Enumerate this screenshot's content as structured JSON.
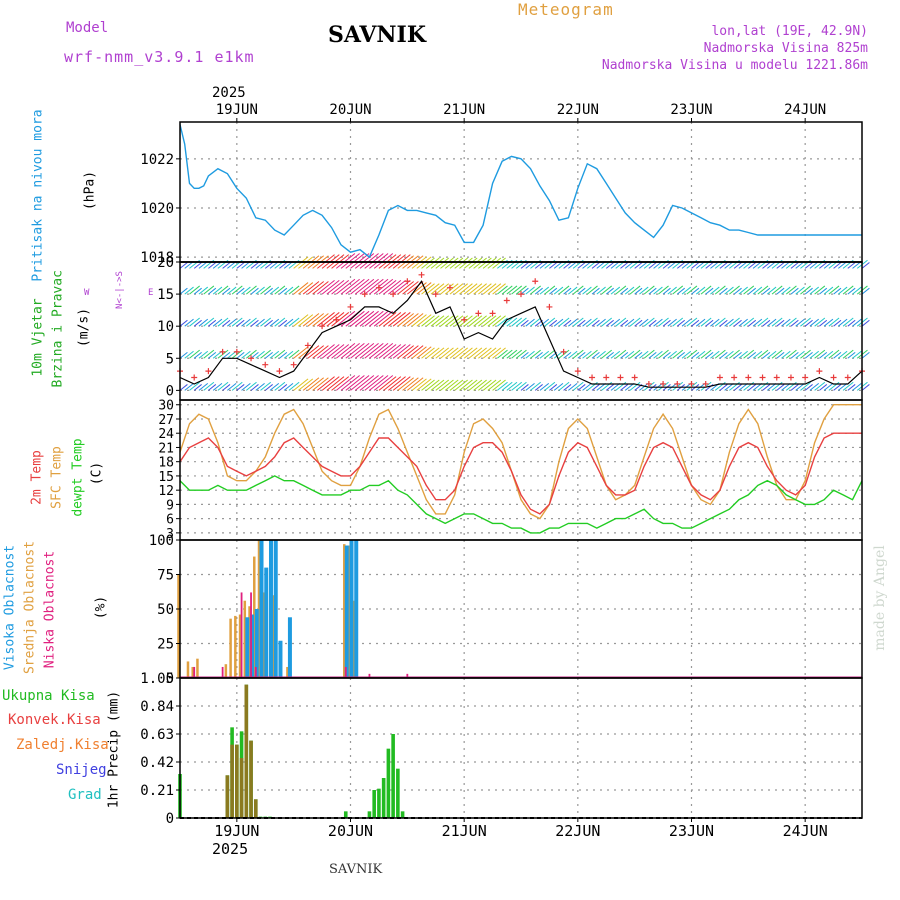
{
  "header": {
    "model_label": "Model",
    "model_name": "wrf-nmm_v3.9.1  e1km",
    "station": "SAVNIK",
    "subtitle": "Meteogram",
    "lonlat": "lon,lat (19E, 42.9N)",
    "elevation": "Nadmorska Visina 825m",
    "model_elevation": "Nadmorska Visina u modelu 1221.86m",
    "footer_station": "SAVNIK",
    "watermark": "made by Angel"
  },
  "colors": {
    "pressure": "#1e9be0",
    "wind_speed": "#000000",
    "wind_gust": "#e83a3a",
    "temp2m": "#e84040",
    "sfc_temp": "#e0a040",
    "dewpt": "#22cc22",
    "cloud_high": "#1e9be0",
    "cloud_mid": "#e0a040",
    "cloud_low": "#e0207f",
    "rain_total": "#22bb22",
    "rain_conv": "#e84040",
    "rain_frz": "#f08030",
    "snow": "#4040e0",
    "hail": "#20c0c0",
    "title_purple": "#b040d0",
    "orange": "#e0a040"
  },
  "time_axis": {
    "top_year": "2025",
    "bottom_year": "2025",
    "days": [
      "19JUN",
      "20JUN",
      "21JUN",
      "22JUN",
      "23JUN",
      "24JUN"
    ],
    "start_hour": 12,
    "end_hour": 156
  },
  "panels": {
    "pressure": {
      "label": "Pritisak na nivou mora",
      "unit": "(hPa)",
      "ticks": [
        "1018",
        "1020",
        "1022"
      ]
    },
    "wind": {
      "label1": "10m Vjetar",
      "label2": "Brzina i Pravac",
      "unit": "(m/s)",
      "ticks": [
        "0",
        "5",
        "10",
        "15",
        "20"
      ],
      "compass_ns": "N<-|->S",
      "compass_w": "W",
      "compass_e": "E"
    },
    "temp": {
      "label1": "2m Temp",
      "label2": "SFC Temp",
      "label3": "dewpt Temp",
      "unit": "(C)",
      "ticks": [
        "3",
        "6",
        "9",
        "12",
        "15",
        "18",
        "21",
        "24",
        "27",
        "30"
      ]
    },
    "cloud": {
      "label1": "Visoka Oblacnost",
      "label2": "Srednja Oblacnost",
      "label3": "Niska Oblacnost",
      "unit": "(%)",
      "ticks": [
        "0",
        "25",
        "50",
        "75",
        "100"
      ]
    },
    "precip": {
      "unit": "1hr Precip (mm)",
      "ticks": [
        "0",
        "0.21",
        "0.42",
        "0.63",
        "0.84",
        "1.05"
      ],
      "legend": [
        "Ukupna Kisa",
        "Konvek.Kisa",
        "Zaledj.Kisa",
        "Snijeg",
        "Grad"
      ]
    }
  },
  "chart_data": [
    {
      "type": "line",
      "title": "Pritisak na nivou mora",
      "ylabel": "(hPa)",
      "ylim": [
        1017.8,
        1023.5
      ],
      "x_hours": [
        12,
        13,
        14,
        15,
        16,
        17,
        18,
        20,
        22,
        24,
        26,
        28,
        30,
        32,
        34,
        36,
        38,
        40,
        42,
        44,
        46,
        48,
        50,
        52,
        54,
        56,
        58,
        60,
        62,
        64,
        66,
        68,
        70,
        72,
        74,
        76,
        78,
        80,
        82,
        84,
        86,
        88,
        90,
        92,
        94,
        96,
        98,
        100,
        102,
        104,
        106,
        108,
        110,
        112,
        114,
        116,
        118,
        120,
        122,
        124,
        126,
        128,
        130,
        132,
        134,
        136,
        138,
        140,
        142,
        144,
        146,
        148,
        150,
        152,
        154,
        156
      ],
      "values": [
        1023.4,
        1022.6,
        1021.0,
        1020.8,
        1020.8,
        1020.9,
        1021.3,
        1021.6,
        1021.4,
        1020.8,
        1020.4,
        1019.6,
        1019.5,
        1019.1,
        1018.9,
        1019.3,
        1019.7,
        1019.9,
        1019.7,
        1019.2,
        1018.5,
        1018.2,
        1018.3,
        1018.0,
        1018.9,
        1019.9,
        1020.1,
        1019.9,
        1019.9,
        1019.8,
        1019.7,
        1019.4,
        1019.3,
        1018.6,
        1018.6,
        1019.3,
        1021.0,
        1021.9,
        1022.1,
        1022.0,
        1021.6,
        1020.9,
        1020.3,
        1019.5,
        1019.6,
        1020.8,
        1021.8,
        1021.6,
        1021.0,
        1020.4,
        1019.8,
        1019.4,
        1019.1,
        1018.8,
        1019.3,
        1020.1,
        1020.0,
        1019.8,
        1019.6,
        1019.4,
        1019.3,
        1019.1,
        1019.1,
        1019.0,
        1018.9,
        1018.9,
        1018.9,
        1018.9,
        1018.9,
        1018.9,
        1018.9,
        1018.9,
        1018.9,
        1018.9,
        1018.9,
        1018.9
      ]
    },
    {
      "type": "line",
      "title": "10m Vjetar Brzina i Pravac",
      "ylabel": "(m/s)",
      "ylim": [
        -1.5,
        20
      ],
      "x_hours": [
        12,
        15,
        18,
        21,
        24,
        27,
        30,
        33,
        36,
        39,
        42,
        45,
        48,
        51,
        54,
        57,
        60,
        63,
        66,
        69,
        72,
        75,
        78,
        81,
        84,
        87,
        90,
        93,
        96,
        99,
        102,
        105,
        108,
        111,
        114,
        117,
        120,
        123,
        126,
        129,
        132,
        135,
        138,
        141,
        144,
        147,
        150,
        153,
        156
      ],
      "series": [
        {
          "name": "speed",
          "values": [
            2,
            1,
            2,
            5,
            5,
            4,
            3,
            2,
            3,
            6,
            9,
            10,
            11,
            13,
            13,
            12,
            14,
            17,
            12,
            13,
            8,
            9,
            8,
            11,
            12,
            13,
            8,
            3,
            2,
            1,
            1,
            1,
            1,
            0.5,
            0.5,
            0.5,
            0.5,
            0.5,
            1,
            1,
            1,
            1,
            1,
            1,
            1,
            2,
            1,
            1,
            3
          ]
        },
        {
          "name": "gust",
          "values": [
            3,
            2,
            3,
            6,
            6,
            5,
            4,
            3,
            4,
            7,
            10,
            11,
            13,
            15,
            16,
            15,
            17,
            18,
            15,
            16,
            11,
            12,
            12,
            14,
            15,
            17,
            13,
            6,
            3,
            2,
            2,
            2,
            2,
            1,
            1,
            1,
            1,
            1,
            2,
            2,
            2,
            2,
            2,
            2,
            2,
            3,
            2,
            2,
            3
          ]
        }
      ]
    },
    {
      "type": "line",
      "title": "Temperature",
      "ylabel": "(C)",
      "ylim": [
        1.5,
        31
      ],
      "x_hours": [
        12,
        14,
        16,
        18,
        20,
        22,
        24,
        26,
        28,
        30,
        32,
        34,
        36,
        38,
        40,
        42,
        44,
        46,
        48,
        50,
        52,
        54,
        56,
        58,
        60,
        62,
        64,
        66,
        68,
        70,
        72,
        74,
        76,
        78,
        80,
        82,
        84,
        86,
        88,
        90,
        92,
        94,
        96,
        98,
        100,
        102,
        104,
        106,
        108,
        110,
        112,
        114,
        116,
        118,
        120,
        122,
        124,
        126,
        128,
        130,
        132,
        134,
        136,
        138,
        140,
        142,
        144,
        146,
        148,
        150,
        152,
        154,
        156
      ],
      "series": [
        {
          "name": "2m Temp",
          "values": [
            18,
            21,
            22,
            23,
            21,
            17,
            16,
            15,
            16,
            17,
            19,
            22,
            23,
            21,
            19,
            17,
            16,
            15,
            15,
            17,
            20,
            23,
            23,
            21,
            19,
            17,
            13,
            10,
            10,
            12,
            17,
            21,
            22,
            22,
            20,
            16,
            11,
            8,
            7,
            9,
            15,
            20,
            22,
            21,
            17,
            13,
            11,
            11,
            12,
            17,
            21,
            22,
            21,
            17,
            13,
            11,
            10,
            12,
            17,
            21,
            22,
            21,
            17,
            14,
            12,
            11,
            13,
            19,
            23,
            24,
            24,
            24,
            24
          ]
        },
        {
          "name": "SFC Temp",
          "values": [
            20,
            26,
            28,
            27,
            22,
            15,
            14,
            14,
            16,
            19,
            24,
            28,
            29,
            26,
            21,
            16,
            14,
            13,
            13,
            17,
            23,
            28,
            29,
            25,
            20,
            15,
            10,
            7,
            7,
            11,
            20,
            26,
            27,
            25,
            22,
            16,
            10,
            7,
            6,
            9,
            18,
            25,
            27,
            25,
            19,
            13,
            10,
            11,
            13,
            19,
            25,
            28,
            25,
            19,
            13,
            10,
            9,
            12,
            20,
            26,
            29,
            26,
            19,
            13,
            10,
            10,
            14,
            22,
            27,
            30,
            30,
            30,
            30
          ]
        },
        {
          "name": "dewpt Temp",
          "values": [
            14,
            12,
            12,
            12,
            13,
            12,
            12,
            12,
            13,
            14,
            15,
            14,
            14,
            13,
            12,
            11,
            11,
            11,
            12,
            12,
            13,
            13,
            14,
            12,
            11,
            9,
            7,
            6,
            5,
            6,
            7,
            7,
            6,
            5,
            5,
            4,
            4,
            3,
            3,
            4,
            4,
            5,
            5,
            5,
            4,
            5,
            6,
            6,
            7,
            8,
            6,
            5,
            5,
            4,
            4,
            5,
            6,
            7,
            8,
            10,
            11,
            13,
            14,
            13,
            11,
            10,
            9,
            9,
            10,
            12,
            11,
            10,
            14
          ]
        }
      ]
    },
    {
      "type": "bar",
      "title": "Oblacnost",
      "ylabel": "(%)",
      "ylim": [
        0,
        100
      ],
      "series": [
        {
          "name": "Visoka Oblacnost",
          "x_hours": [
            21,
            22,
            23,
            24,
            25,
            26,
            27,
            28,
            29,
            30,
            31,
            32,
            33,
            35,
            40,
            47,
            48,
            49,
            60,
            62
          ],
          "values": [
            0,
            0,
            0,
            0,
            0,
            44,
            46,
            50,
            100,
            80,
            100,
            100,
            27,
            44,
            0,
            96,
            100,
            100,
            0,
            0
          ]
        },
        {
          "name": "Srednja Oblacnost",
          "x_hours": [
            12,
            14,
            15,
            16,
            21,
            22,
            23,
            24,
            25,
            26,
            27,
            28,
            29,
            30,
            32,
            35,
            47,
            48,
            49,
            50
          ],
          "values": [
            75,
            12,
            8,
            14,
            0,
            10,
            43,
            45,
            46,
            56,
            52,
            88,
            100,
            62,
            60,
            8,
            97,
            96,
            56,
            0
          ]
        },
        {
          "name": "Niska Oblacnost",
          "x_hours": [
            15,
            21,
            25,
            27,
            28,
            47,
            52,
            60
          ],
          "values": [
            8,
            8,
            62,
            62,
            8,
            8,
            3,
            3
          ]
        }
      ]
    },
    {
      "type": "bar",
      "title": "1hr Precip",
      "ylabel": "1hr Precip (mm)",
      "ylim": [
        0,
        1.05
      ],
      "series": [
        {
          "name": "Ukupna Kisa",
          "x_hours": [
            12,
            22,
            23,
            24,
            25,
            26,
            27,
            28,
            29,
            30,
            31,
            47,
            52,
            53,
            54,
            55,
            56,
            57,
            58,
            59
          ],
          "values": [
            0.33,
            0.32,
            0.68,
            0.55,
            0.65,
            1.0,
            0.58,
            0.14,
            0.01,
            0.01,
            0.01,
            0.05,
            0.05,
            0.21,
            0.22,
            0.3,
            0.52,
            0.63,
            0.37,
            0.05
          ]
        },
        {
          "name": "Konvek.Kisa",
          "x_hours": [
            22,
            23,
            24,
            25,
            26,
            27,
            28
          ],
          "values": [
            0.32,
            0.55,
            0.55,
            0.45,
            1.0,
            0.58,
            0.14
          ]
        }
      ]
    }
  ]
}
